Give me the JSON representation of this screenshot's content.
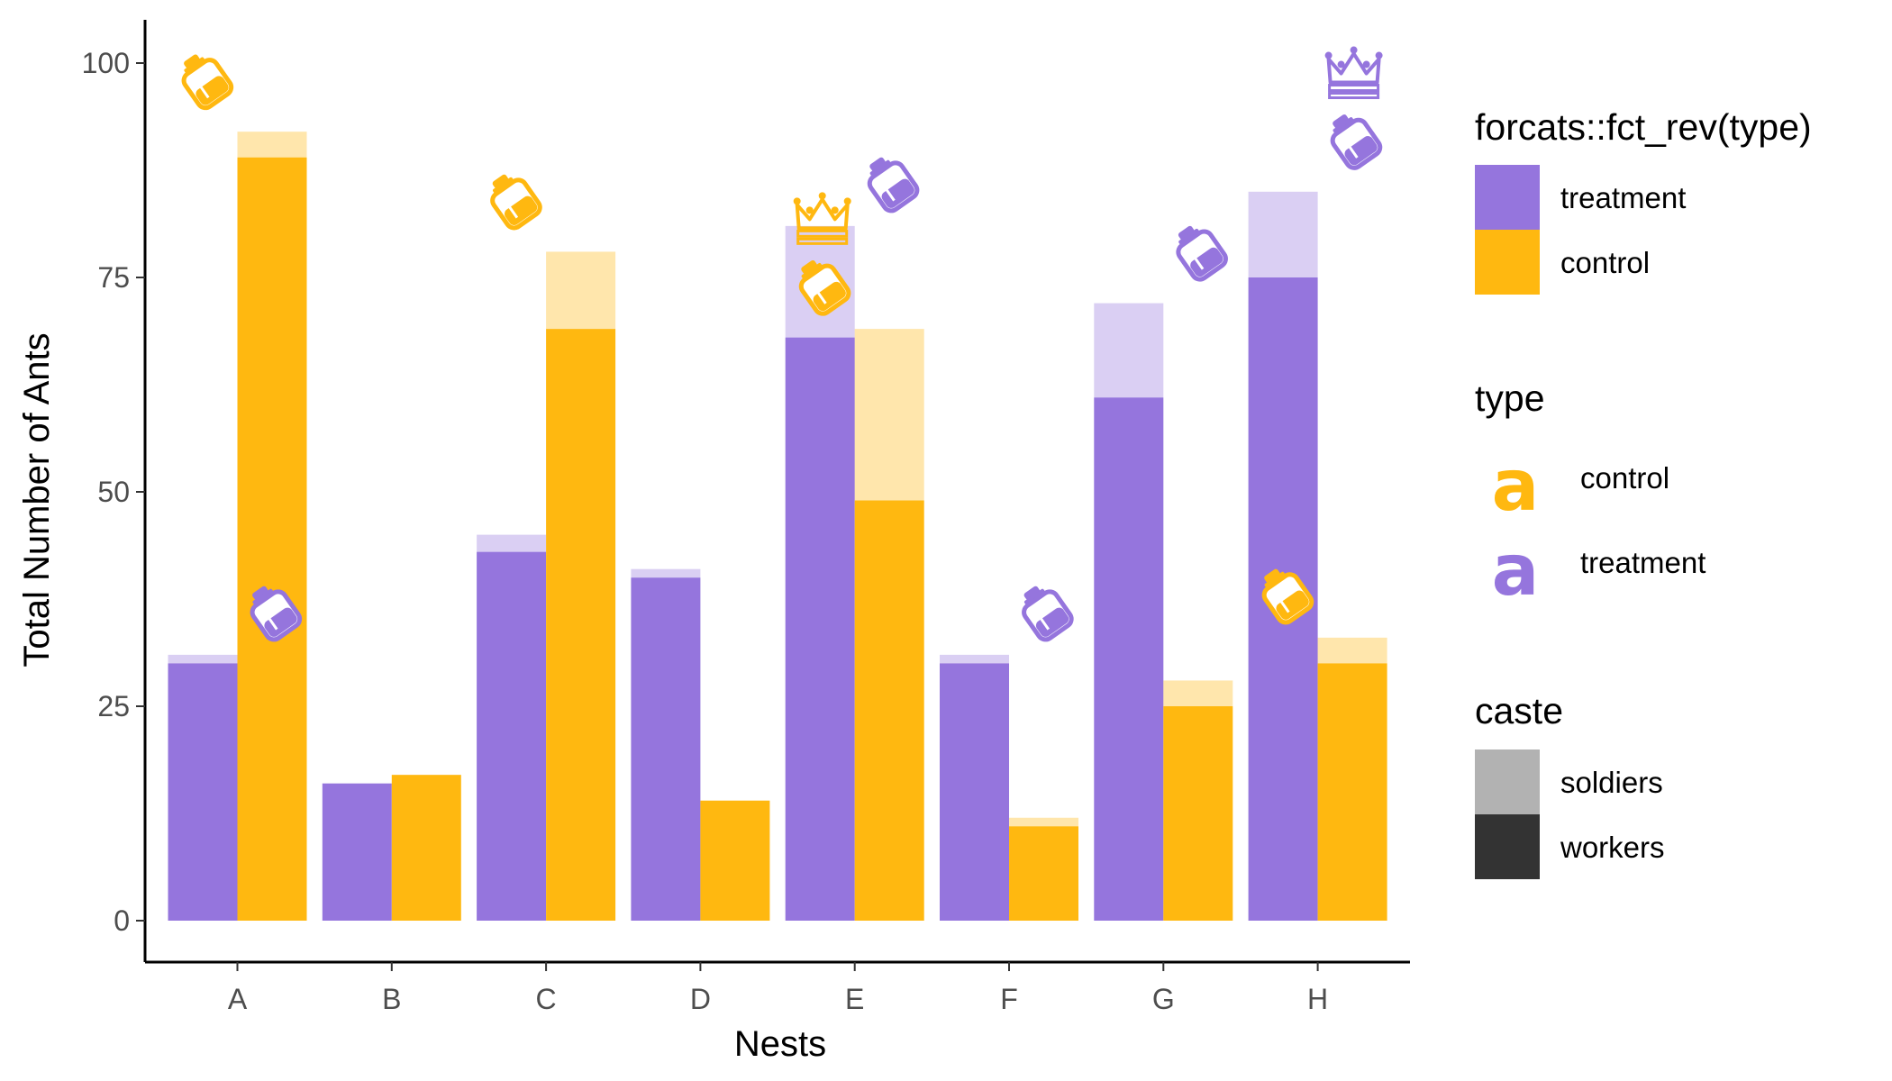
{
  "chart_data": {
    "type": "bar",
    "xlabel": "Nests",
    "ylabel": "Total Number of Ants",
    "ylim": [
      0,
      105
    ],
    "yticks": [
      0,
      25,
      50,
      75,
      100
    ],
    "grid": false,
    "categories": [
      "A",
      "B",
      "C",
      "D",
      "E",
      "F",
      "G",
      "H"
    ],
    "series": [
      {
        "name": "treatment",
        "color": "#9575dd",
        "workers": [
          30,
          16,
          43,
          40,
          68,
          30,
          61,
          75
        ],
        "soldiers": [
          1,
          0,
          2,
          1,
          13,
          1,
          11,
          10
        ]
      },
      {
        "name": "control",
        "color": "#ffb810",
        "workers": [
          89,
          17,
          69,
          14,
          49,
          11,
          25,
          30
        ],
        "soldiers": [
          3,
          0,
          9,
          0,
          20,
          1,
          3,
          3
        ]
      }
    ],
    "annotations": [
      {
        "icon": "baby-bottle-icon",
        "nest": "A",
        "type": "control",
        "y": 98
      },
      {
        "icon": "baby-bottle-icon",
        "nest": "A",
        "type": "treatment",
        "y": 36
      },
      {
        "icon": "baby-bottle-icon",
        "nest": "C",
        "type": "control",
        "y": 84
      },
      {
        "icon": "crown-icon",
        "nest": "E",
        "type": "control",
        "y": 82
      },
      {
        "icon": "baby-bottle-icon",
        "nest": "E",
        "type": "control",
        "y": 74
      },
      {
        "icon": "baby-bottle-icon",
        "nest": "E",
        "type": "treatment",
        "y": 86
      },
      {
        "icon": "baby-bottle-icon",
        "nest": "F",
        "type": "treatment",
        "y": 36
      },
      {
        "icon": "baby-bottle-icon",
        "nest": "G",
        "type": "treatment",
        "y": 78
      },
      {
        "icon": "crown-icon",
        "nest": "H",
        "type": "treatment",
        "y": 99
      },
      {
        "icon": "baby-bottle-icon",
        "nest": "H",
        "type": "treatment",
        "y": 91
      },
      {
        "icon": "baby-bottle-icon",
        "nest": "H",
        "type": "control",
        "y": 38
      }
    ],
    "legend": {
      "placement": "right",
      "fill": {
        "title": "forcats::fct_rev(type)",
        "items": [
          {
            "label": "treatment",
            "color": "#9575dd"
          },
          {
            "label": "control",
            "color": "#ffb810"
          }
        ]
      },
      "text": {
        "title": "type",
        "glyph": "a",
        "items": [
          {
            "label": "control",
            "color": "#ffb810"
          },
          {
            "label": "treatment",
            "color": "#9575dd"
          }
        ]
      },
      "alpha": {
        "title": "caste",
        "items": [
          {
            "label": "soldiers",
            "color": "#b2b2b2"
          },
          {
            "label": "workers",
            "color": "#333333"
          }
        ]
      }
    }
  }
}
